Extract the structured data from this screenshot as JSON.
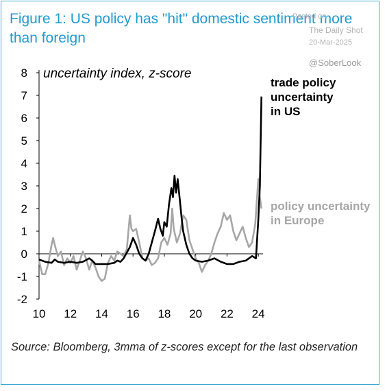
{
  "header": {
    "title": "Figure 1: US policy has \"hit\" domestic sentiment more than foreign",
    "posted_on": "Posted on",
    "publisher": "The Daily Shot",
    "date": "20-Mar-2025",
    "handle": "@SoberLook"
  },
  "footer": {
    "source": "Source: Bloomberg, 3mma of z-scores except for the last observation"
  },
  "colors": {
    "us": "#000000",
    "europe": "#a6a6a6",
    "title": "#1f9bd1",
    "frame": "#3aa6d4"
  },
  "chart_data": {
    "type": "line",
    "subtitle": "uncertainty index, z-score",
    "xlim": [
      10,
      24.3
    ],
    "ylim": [
      -2,
      8
    ],
    "x_ticks": [
      "10",
      "12",
      "14",
      "16",
      "18",
      "20",
      "22",
      "24"
    ],
    "y_ticks": [
      "8",
      "7",
      "6",
      "5",
      "4",
      "3",
      "2",
      "1",
      "0",
      "-1",
      "-2"
    ],
    "series": [
      {
        "name": "trade policy uncertainty in US",
        "label_lines": [
          "trade policy",
          "uncertainty",
          "in US"
        ],
        "color": "#000000",
        "points": [
          [
            10.0,
            -0.25
          ],
          [
            10.4,
            -0.35
          ],
          [
            10.8,
            -0.4
          ],
          [
            11.0,
            -0.25
          ],
          [
            11.2,
            -0.35
          ],
          [
            11.6,
            -0.4
          ],
          [
            12.0,
            -0.35
          ],
          [
            12.4,
            -0.4
          ],
          [
            12.8,
            -0.35
          ],
          [
            13.2,
            -0.2
          ],
          [
            13.4,
            -0.3
          ],
          [
            13.6,
            -0.45
          ],
          [
            14.0,
            -0.45
          ],
          [
            14.4,
            -0.45
          ],
          [
            14.8,
            -0.4
          ],
          [
            15.0,
            -0.3
          ],
          [
            15.2,
            -0.35
          ],
          [
            15.4,
            -0.2
          ],
          [
            15.6,
            0.05
          ],
          [
            15.8,
            0.3
          ],
          [
            16.0,
            0.7
          ],
          [
            16.2,
            0.4
          ],
          [
            16.4,
            0.0
          ],
          [
            16.6,
            -0.2
          ],
          [
            16.8,
            -0.3
          ],
          [
            17.0,
            0.0
          ],
          [
            17.2,
            0.5
          ],
          [
            17.4,
            1.0
          ],
          [
            17.6,
            1.55
          ],
          [
            17.75,
            1.1
          ],
          [
            17.9,
            0.8
          ],
          [
            18.0,
            1.4
          ],
          [
            18.15,
            1.2
          ],
          [
            18.3,
            2.2
          ],
          [
            18.45,
            2.9
          ],
          [
            18.55,
            2.5
          ],
          [
            18.65,
            3.45
          ],
          [
            18.75,
            2.7
          ],
          [
            18.85,
            3.3
          ],
          [
            19.0,
            2.3
          ],
          [
            19.1,
            1.6
          ],
          [
            19.2,
            1.0
          ],
          [
            19.4,
            0.4
          ],
          [
            19.6,
            0.0
          ],
          [
            19.8,
            -0.2
          ],
          [
            20.0,
            -0.3
          ],
          [
            20.4,
            -0.35
          ],
          [
            20.8,
            -0.3
          ],
          [
            21.2,
            -0.2
          ],
          [
            21.6,
            -0.35
          ],
          [
            22.0,
            -0.45
          ],
          [
            22.4,
            -0.45
          ],
          [
            22.8,
            -0.35
          ],
          [
            23.2,
            -0.3
          ],
          [
            23.6,
            -0.1
          ],
          [
            23.85,
            -0.2
          ],
          [
            24.0,
            1.5
          ],
          [
            24.1,
            3.0
          ],
          [
            24.2,
            6.95
          ]
        ]
      },
      {
        "name": "policy uncertainty in Europe",
        "label_lines": [
          "policy uncertainty",
          "in Europe"
        ],
        "color": "#a6a6a6",
        "points": [
          [
            10.0,
            -0.3
          ],
          [
            10.2,
            -0.9
          ],
          [
            10.4,
            -0.9
          ],
          [
            10.6,
            -0.4
          ],
          [
            10.8,
            0.4
          ],
          [
            10.9,
            0.7
          ],
          [
            11.0,
            0.4
          ],
          [
            11.2,
            -0.1
          ],
          [
            11.4,
            0.1
          ],
          [
            11.6,
            -0.5
          ],
          [
            11.8,
            -0.2
          ],
          [
            12.0,
            -0.4
          ],
          [
            12.2,
            -0.1
          ],
          [
            12.4,
            -0.7
          ],
          [
            12.6,
            -0.3
          ],
          [
            12.8,
            0.1
          ],
          [
            13.0,
            -0.2
          ],
          [
            13.2,
            -0.7
          ],
          [
            13.4,
            -0.3
          ],
          [
            13.6,
            -0.6
          ],
          [
            13.8,
            -1.0
          ],
          [
            14.0,
            -1.2
          ],
          [
            14.2,
            -1.1
          ],
          [
            14.4,
            -0.4
          ],
          [
            14.6,
            -0.1
          ],
          [
            14.8,
            -0.3
          ],
          [
            15.0,
            0.1
          ],
          [
            15.2,
            0.0
          ],
          [
            15.4,
            -0.1
          ],
          [
            15.6,
            0.2
          ],
          [
            15.8,
            1.7
          ],
          [
            15.9,
            1.1
          ],
          [
            16.0,
            1.0
          ],
          [
            16.2,
            1.1
          ],
          [
            16.4,
            0.5
          ],
          [
            16.6,
            -0.2
          ],
          [
            16.8,
            -0.3
          ],
          [
            17.0,
            -0.2
          ],
          [
            17.2,
            -0.5
          ],
          [
            17.4,
            -0.4
          ],
          [
            17.6,
            -0.2
          ],
          [
            17.8,
            0.5
          ],
          [
            18.0,
            0.7
          ],
          [
            18.2,
            0.4
          ],
          [
            18.4,
            0.9
          ],
          [
            18.5,
            2.0
          ],
          [
            18.6,
            1.1
          ],
          [
            18.8,
            0.5
          ],
          [
            19.0,
            0.9
          ],
          [
            19.2,
            1.7
          ],
          [
            19.4,
            1.5
          ],
          [
            19.6,
            0.6
          ],
          [
            19.8,
            0.2
          ],
          [
            20.0,
            -0.2
          ],
          [
            20.2,
            -0.4
          ],
          [
            20.4,
            -0.8
          ],
          [
            20.6,
            -0.5
          ],
          [
            20.8,
            -0.3
          ],
          [
            21.0,
            0.0
          ],
          [
            21.2,
            0.5
          ],
          [
            21.4,
            0.9
          ],
          [
            21.6,
            1.2
          ],
          [
            21.8,
            1.8
          ],
          [
            22.0,
            1.5
          ],
          [
            22.2,
            1.7
          ],
          [
            22.4,
            1.0
          ],
          [
            22.6,
            0.6
          ],
          [
            22.8,
            0.9
          ],
          [
            23.0,
            1.2
          ],
          [
            23.2,
            0.7
          ],
          [
            23.4,
            0.3
          ],
          [
            23.6,
            0.5
          ],
          [
            23.8,
            1.3
          ],
          [
            24.0,
            3.3
          ],
          [
            24.1,
            2.5
          ],
          [
            24.2,
            2.0
          ]
        ]
      }
    ],
    "grid": false,
    "zero_line": true
  }
}
